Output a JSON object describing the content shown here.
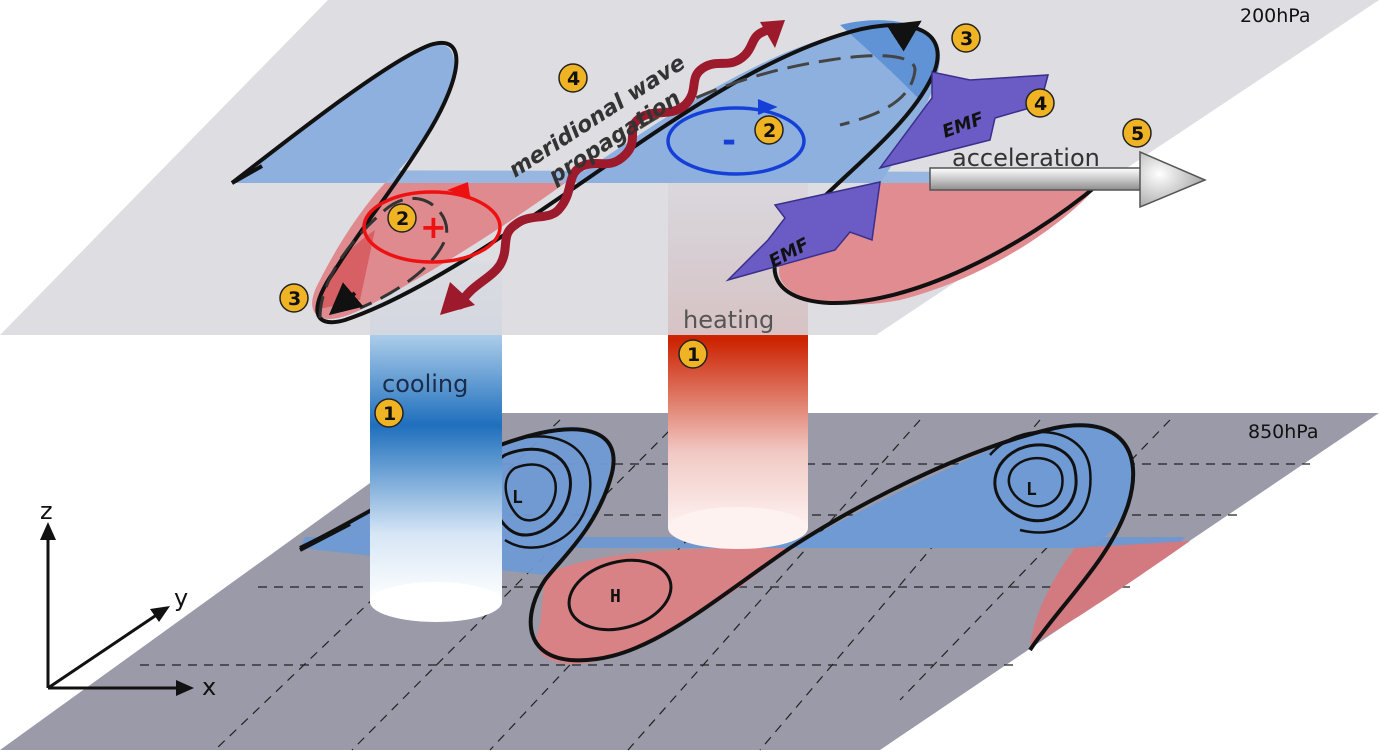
{
  "levels": {
    "upper": "200hPa",
    "lower": "850hPa"
  },
  "labels": {
    "heating": "heating",
    "cooling": "cooling",
    "acceleration": "acceleration",
    "wave_line1": "meridional wave",
    "wave_line2": "propagation",
    "emf": "EMF",
    "plus": "+",
    "minus": "-",
    "low": "L",
    "high": "H"
  },
  "steps": {
    "s1": "1",
    "s2": "2",
    "s3": "3",
    "s4": "4",
    "s5": "5"
  },
  "axes": {
    "x": "x",
    "y": "y",
    "z": "z"
  },
  "colors": {
    "plane_upper": "#d8d8de",
    "plane_lower": "#9a9aa8",
    "anomaly_blue": "#7ea6dc",
    "anomaly_red": "#e08080",
    "wave_arrow": "#9c1a2b",
    "emf_arrow": "#6a5cc4",
    "badge": "#f0b323"
  }
}
